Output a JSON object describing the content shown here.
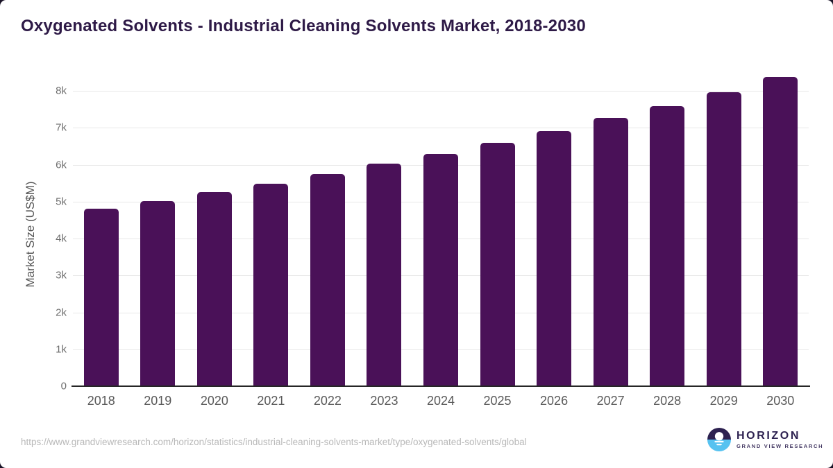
{
  "header": {
    "title": "Oxygenated Solvents - Industrial Cleaning Solvents Market, 2018-2030"
  },
  "chart_data": {
    "type": "bar",
    "title": "Oxygenated Solvents - Industrial Cleaning Solvents Market, 2018-2030",
    "categories": [
      "2018",
      "2019",
      "2020",
      "2021",
      "2022",
      "2023",
      "2024",
      "2025",
      "2026",
      "2027",
      "2028",
      "2029",
      "2030"
    ],
    "values": [
      4800,
      5010,
      5250,
      5480,
      5750,
      6030,
      6290,
      6590,
      6920,
      7260,
      7590,
      7970,
      8370
    ],
    "xlabel": "",
    "ylabel": "Market Size (US$M)",
    "ylim": [
      0,
      8500
    ],
    "yticks": [
      0,
      1000,
      2000,
      3000,
      4000,
      5000,
      6000,
      7000,
      8000
    ],
    "ytick_labels": [
      "0",
      "1k",
      "2k",
      "3k",
      "4k",
      "5k",
      "6k",
      "7k",
      "8k"
    ],
    "grid": true,
    "legend": false,
    "bar_color": "#4a1158"
  },
  "footer": {
    "source_url": "https://www.grandviewresearch.com/horizon/statistics/industrial-cleaning-solvents-market/type/oxygenated-solvents/global",
    "logo": {
      "brand": "HORIZON",
      "sub_brand": "GRAND VIEW RESEARCH",
      "icon": "horizon-sun-icon",
      "colors": {
        "dark": "#2d2150",
        "light_blue": "#57c2f0"
      }
    }
  }
}
